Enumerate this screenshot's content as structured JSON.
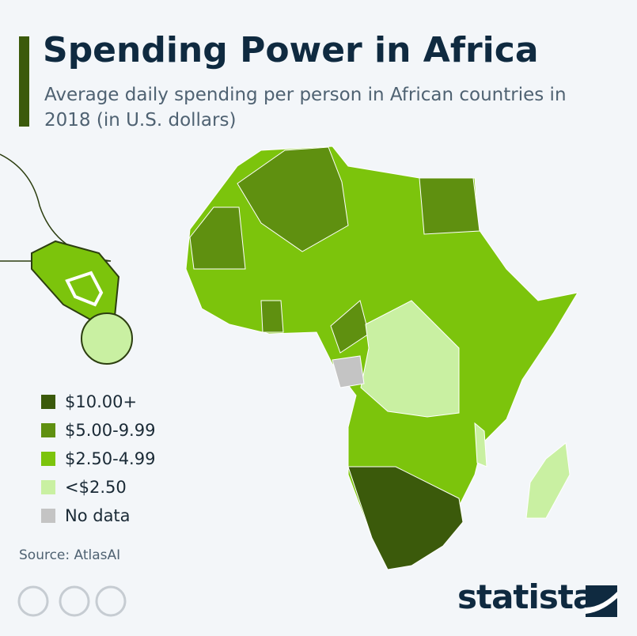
{
  "header": {
    "title": "Spending Power in Africa",
    "subtitle": "Average daily spending per person in African countries in 2018 (in U.S. dollars)"
  },
  "legend": [
    {
      "label": "$10.00+",
      "color": "#3b5a0b"
    },
    {
      "label": "$5.00-9.99",
      "color": "#5f9010"
    },
    {
      "label": "$2.50-4.99",
      "color": "#7cc40c"
    },
    {
      "label": "<$2.50",
      "color": "#c9f0a2"
    },
    {
      "label": "No data",
      "color": "#c4c4c4"
    }
  ],
  "source": "Source: AtlasAI",
  "brand": "statista"
}
